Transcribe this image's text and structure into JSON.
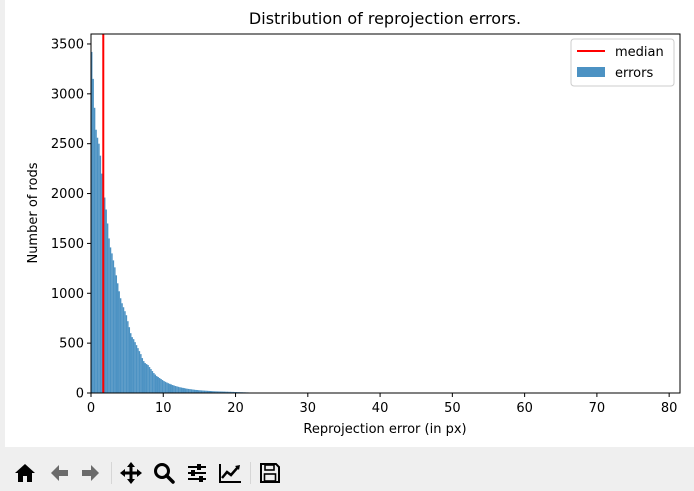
{
  "chart_data": {
    "type": "bar",
    "title": "Distribution of reprojection errors.",
    "xlabel": "Reprojection error (in px)",
    "ylabel": "Number of rods",
    "xlim": [
      0,
      81.5
    ],
    "ylim": [
      0,
      3600
    ],
    "xticks": [
      0,
      10,
      20,
      30,
      40,
      50,
      60,
      70,
      80
    ],
    "yticks": [
      0,
      500,
      1000,
      1500,
      2000,
      2500,
      3000,
      3500
    ],
    "bin_width": 0.2,
    "bin_start": 0,
    "histogram": {
      "name": "errors",
      "color": "#1f77b4",
      "values": [
        3420,
        3150,
        2860,
        2640,
        2560,
        2500,
        2380,
        2200,
        2100,
        1960,
        1840,
        1700,
        1550,
        1460,
        1400,
        1330,
        1260,
        1180,
        1100,
        1020,
        950,
        900,
        860,
        820,
        780,
        720,
        660,
        600,
        560,
        540,
        510,
        480,
        450,
        420,
        390,
        350,
        320,
        300,
        290,
        280,
        260,
        240,
        220,
        200,
        185,
        170,
        160,
        150,
        140,
        130,
        120,
        112,
        105,
        98,
        92,
        86,
        80,
        75,
        70,
        66,
        62,
        58,
        55,
        52,
        49,
        46,
        43,
        41,
        39,
        37,
        35,
        33,
        31,
        30,
        28,
        27,
        26,
        25,
        24,
        23,
        22,
        21,
        20,
        19,
        18,
        17,
        17,
        16,
        16,
        15,
        15,
        14,
        14,
        13,
        13,
        12,
        12,
        11,
        11,
        10,
        10,
        9,
        9,
        8,
        8,
        7,
        7,
        6,
        6,
        5,
        5,
        5,
        4,
        4,
        4,
        3,
        3,
        3,
        3,
        2,
        2,
        2,
        2,
        2,
        1,
        1,
        1,
        1,
        1,
        1,
        1,
        1,
        1,
        1,
        1,
        1,
        1,
        1,
        1,
        1
      ]
    },
    "median": {
      "name": "median",
      "value": 1.7,
      "color": "#ff0000"
    },
    "legend": {
      "placement": "top-right",
      "entries": [
        "median",
        "errors"
      ]
    }
  },
  "toolbar": {
    "buttons": [
      "home-icon",
      "back-icon",
      "forward-icon",
      "pan-icon",
      "zoom-icon",
      "configure-subplots-icon",
      "edit-axis-icon",
      "save-icon"
    ]
  }
}
